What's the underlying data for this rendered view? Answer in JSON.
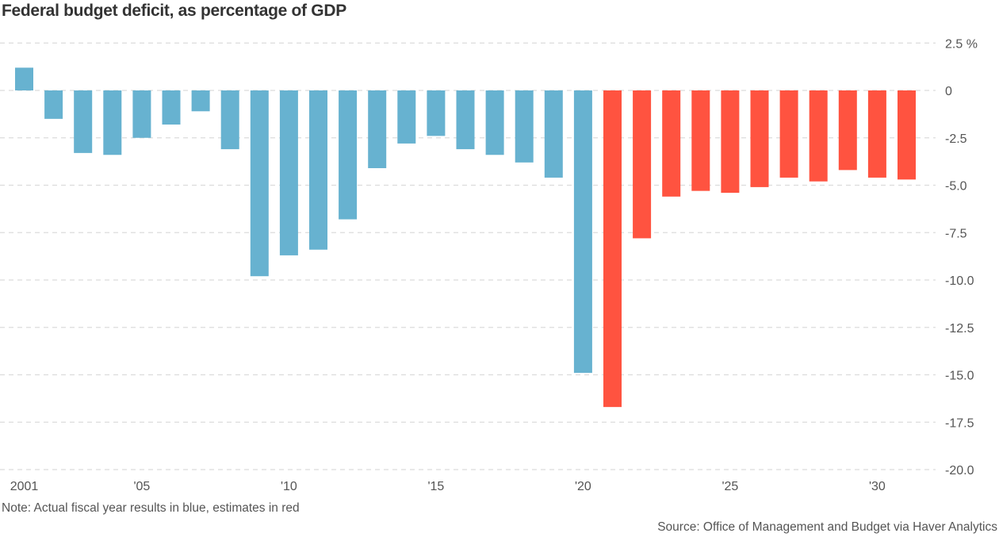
{
  "chart_data": {
    "type": "bar",
    "title": "Federal budget deficit, as percentage of GDP",
    "note": "Note: Actual fiscal year results in blue, estimates in red",
    "source": "Source: Office of Management and Budget via Haver Analytics",
    "xlabel": "",
    "ylabel": "",
    "ylim": [
      -20,
      2.5
    ],
    "y_ticks": [
      2.5,
      0,
      -2.5,
      -5,
      -7.5,
      -10,
      -12.5,
      -15,
      -17.5,
      -20
    ],
    "y_tick_labels": [
      "2.5 %",
      "0",
      "-2.5",
      "-5.0",
      "-7.5",
      "-10.0",
      "-12.5",
      "-15.0",
      "-17.5",
      "-20.0"
    ],
    "x_ticks": [
      2001,
      2005,
      2010,
      2015,
      2020,
      2025,
      2030
    ],
    "x_tick_labels": [
      "2001",
      "'05",
      "'10",
      "'15",
      "'20",
      "'25",
      "'30"
    ],
    "grid": true,
    "y_axis_position": "right",
    "colors": {
      "actual": "#67b2d0",
      "estimate": "#ff5340"
    },
    "categories": [
      2001,
      2002,
      2003,
      2004,
      2005,
      2006,
      2007,
      2008,
      2009,
      2010,
      2011,
      2012,
      2013,
      2014,
      2015,
      2016,
      2017,
      2018,
      2019,
      2020,
      2021,
      2022,
      2023,
      2024,
      2025,
      2026,
      2027,
      2028,
      2029,
      2030,
      2031
    ],
    "series": [
      {
        "name": "Actual",
        "color": "#67b2d0",
        "x": [
          2001,
          2002,
          2003,
          2004,
          2005,
          2006,
          2007,
          2008,
          2009,
          2010,
          2011,
          2012,
          2013,
          2014,
          2015,
          2016,
          2017,
          2018,
          2019,
          2020
        ],
        "values": [
          1.2,
          -1.5,
          -3.3,
          -3.4,
          -2.5,
          -1.8,
          -1.1,
          -3.1,
          -9.8,
          -8.7,
          -8.4,
          -6.8,
          -4.1,
          -2.8,
          -2.4,
          -3.1,
          -3.4,
          -3.8,
          -4.6,
          -14.9
        ]
      },
      {
        "name": "Estimate",
        "color": "#ff5340",
        "x": [
          2021,
          2022,
          2023,
          2024,
          2025,
          2026,
          2027,
          2028,
          2029,
          2030,
          2031
        ],
        "values": [
          -16.7,
          -7.8,
          -5.6,
          -5.3,
          -5.4,
          -5.1,
          -4.6,
          -4.8,
          -4.2,
          -4.6,
          -4.7
        ]
      }
    ]
  }
}
